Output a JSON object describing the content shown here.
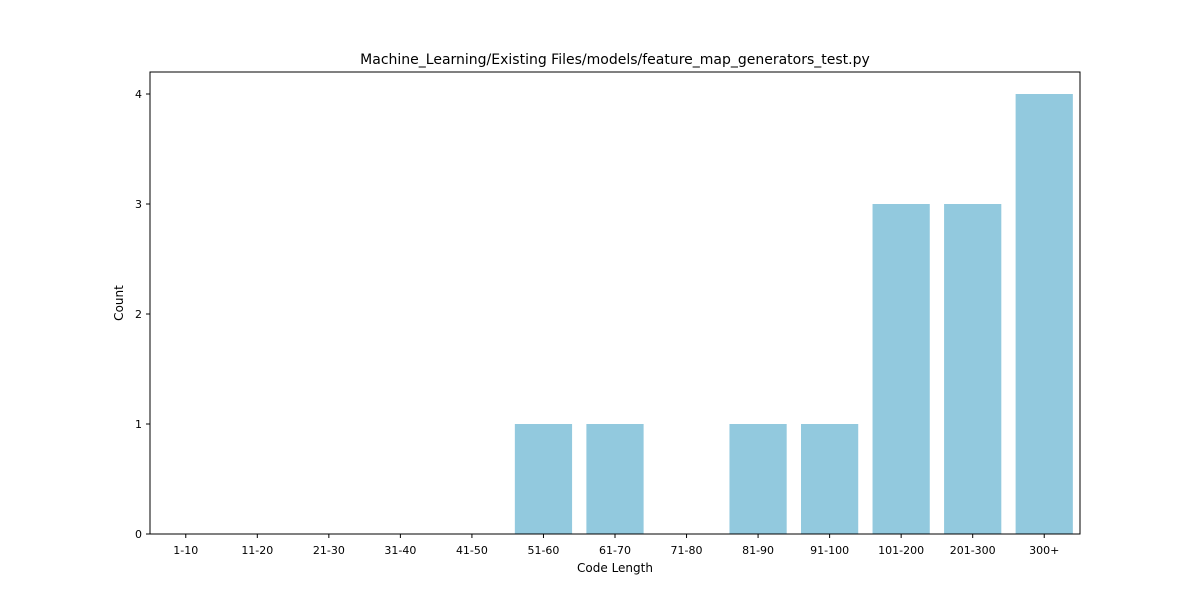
{
  "chart_data": {
    "type": "bar",
    "title": "Machine_Learning/Existing Files/models/feature_map_generators_test.py",
    "xlabel": "Code Length",
    "ylabel": "Count",
    "categories": [
      "1-10",
      "11-20",
      "21-30",
      "31-40",
      "41-50",
      "51-60",
      "61-70",
      "71-80",
      "81-90",
      "91-100",
      "101-200",
      "201-300",
      "300+"
    ],
    "values": [
      0,
      0,
      0,
      0,
      0,
      1,
      1,
      0,
      1,
      1,
      3,
      3,
      4
    ],
    "ylim": [
      0,
      4.2
    ],
    "yticks": [
      0,
      1,
      2,
      3,
      4
    ],
    "bar_color": "#92c9de",
    "grid": false,
    "legend": "none"
  }
}
